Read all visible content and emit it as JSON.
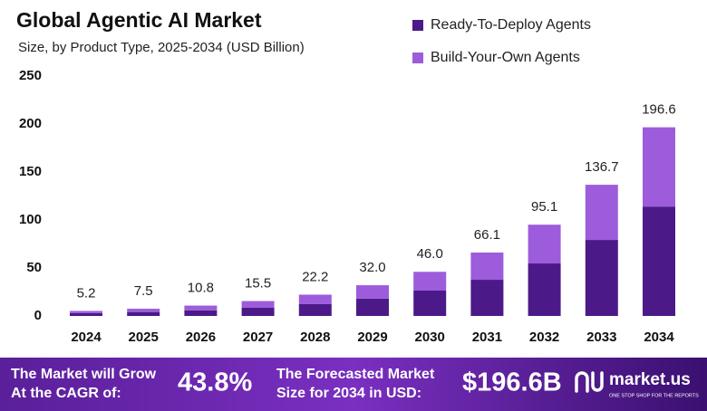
{
  "chart_data": {
    "type": "stacked-bar",
    "title": "Global Agentic AI Market",
    "subtitle": "Size, by Product Type, 2025-2034 (USD Billion)",
    "categories": [
      "2024",
      "2025",
      "2026",
      "2027",
      "2028",
      "2029",
      "2030",
      "2031",
      "2032",
      "2033",
      "2034"
    ],
    "series": [
      {
        "name": "Ready-To-Deploy Agents",
        "color": "#4b1a88",
        "values": [
          2.9,
          4.1,
          5.8,
          8.5,
          12.3,
          18.0,
          26.4,
          37.7,
          54.7,
          79.2,
          114.0
        ]
      },
      {
        "name": "Build-Your-Own Agents",
        "color": "#9d5cdb",
        "values": [
          2.3,
          3.4,
          5.0,
          7.0,
          9.9,
          14.0,
          19.6,
          28.4,
          40.4,
          57.5,
          82.6
        ]
      }
    ],
    "totals": [
      5.2,
      7.5,
      10.8,
      15.5,
      22.2,
      32.0,
      46.0,
      66.1,
      95.1,
      136.7,
      196.6
    ],
    "total_labels": [
      "5.2",
      "7.5",
      "10.8",
      "15.5",
      "22.2",
      "32.0",
      "46.0",
      "66.1",
      "95.1",
      "136.7",
      "196.6"
    ],
    "ylim": [
      0,
      250
    ],
    "yticks": [
      0,
      50,
      100,
      150,
      200,
      250
    ],
    "grid": false,
    "legend": "top-right"
  },
  "footer": {
    "cagr_text": [
      "The Market will Grow",
      "At the CAGR of:"
    ],
    "cagr_value": "43.8%",
    "forecast_text": [
      "The Forecasted Market",
      "Size for 2034 in USD:"
    ],
    "forecast_value": "$196.6B",
    "brand": "market.us",
    "tagline": "ONE STOP SHOP FOR THE REPORTS"
  }
}
